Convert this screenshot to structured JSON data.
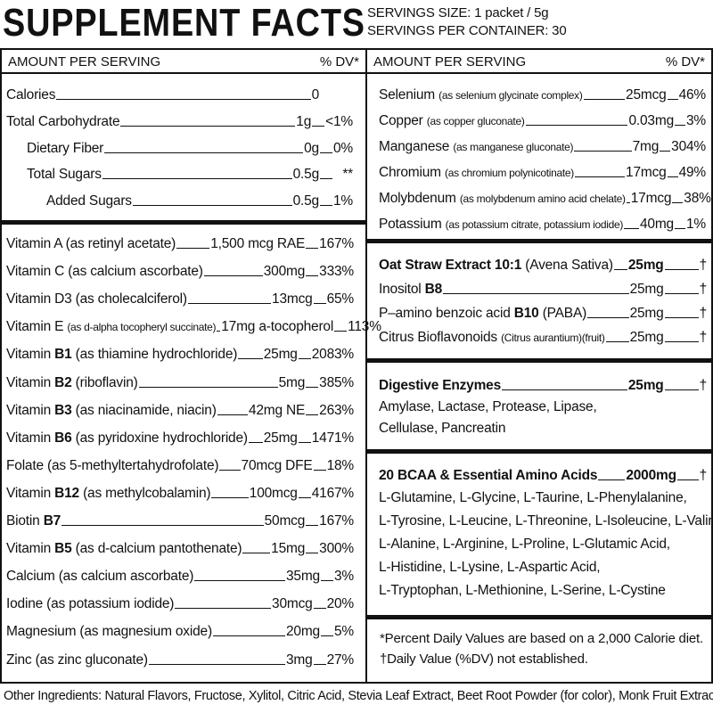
{
  "header": {
    "title": "SUPPLEMENT FACTS",
    "serving_size": "SERVINGS SIZE: 1 packet / 5g",
    "servings_per_container": "SERVINGS PER CONTAINER: 30"
  },
  "left": {
    "col_header": {
      "amount": "AMOUNT PER SERVING",
      "dv": "% DV*"
    },
    "macros": [
      {
        "name": "Calories",
        "amount": "0",
        "dv": ""
      },
      {
        "name": "Total Carbohydrate",
        "amount": "1g",
        "dv": "<1%"
      },
      {
        "name": "Dietary Fiber",
        "amount": "0g",
        "dv": "0%"
      },
      {
        "name": "Total Sugars",
        "amount": "0.5g",
        "dv": "**"
      },
      {
        "name": "Added Sugars",
        "amount": "0.5g",
        "dv": "1%"
      }
    ],
    "vitamins": [
      {
        "pre": "Vitamin A (as retinyl acetate)",
        "bold": "",
        "post": "",
        "small": "",
        "amount": "1,500 mcg RAE",
        "dv": "167%"
      },
      {
        "pre": "Vitamin C (as calcium ascorbate)",
        "bold": "",
        "post": "",
        "small": "",
        "amount": "300mg",
        "dv": "333%"
      },
      {
        "pre": "Vitamin D3 (as cholecalciferol)",
        "bold": "",
        "post": "",
        "small": "",
        "amount": "13mcg",
        "dv": "65%"
      },
      {
        "pre": "Vitamin E ",
        "bold": "",
        "post": "",
        "small": "(as d-alpha tocopheryl succinate)",
        "amount": "17mg a-tocopherol",
        "dv": "113%"
      },
      {
        "pre": "Vitamin ",
        "bold": "B1",
        "post": " (as thiamine hydrochloride)",
        "small": "",
        "amount": "25mg",
        "dv": "2083%"
      },
      {
        "pre": "Vitamin ",
        "bold": "B2",
        "post": " (riboflavin)",
        "small": "",
        "amount": "5mg",
        "dv": "385%"
      },
      {
        "pre": "Vitamin ",
        "bold": "B3",
        "post": " (as niacinamide, niacin)",
        "small": "",
        "amount": "42mg NE",
        "dv": "263%"
      },
      {
        "pre": "Vitamin ",
        "bold": "B6",
        "post": " (as pyridoxine hydrochloride)",
        "small": "",
        "amount": "25mg",
        "dv": "1471%"
      },
      {
        "pre": "Folate (as 5-methyltertahydrofolate)",
        "bold": "",
        "post": "",
        "small": "",
        "amount": "70mcg DFE",
        "dv": "18%"
      },
      {
        "pre": "Vitamin ",
        "bold": "B12",
        "post": " (as methylcobalamin)",
        "small": "",
        "amount": "100mcg",
        "dv": "4167%"
      },
      {
        "pre": "Biotin ",
        "bold": "B7",
        "post": "",
        "small": "",
        "amount": "50mcg",
        "dv": "167%"
      },
      {
        "pre": "Vitamin ",
        "bold": "B5",
        "post": " (as d-calcium pantothenate)",
        "small": "",
        "amount": "15mg",
        "dv": "300%"
      },
      {
        "pre": "Calcium (as calcium ascorbate)",
        "bold": "",
        "post": "",
        "small": "",
        "amount": "35mg",
        "dv": "3%"
      },
      {
        "pre": "Iodine (as potassium iodide)",
        "bold": "",
        "post": "",
        "small": "",
        "amount": "30mcg",
        "dv": "20%"
      },
      {
        "pre": "Magnesium (as magnesium oxide)",
        "bold": "",
        "post": "",
        "small": "",
        "amount": "20mg",
        "dv": "5%"
      },
      {
        "pre": "Zinc (as zinc gluconate)",
        "bold": "",
        "post": "",
        "small": "",
        "amount": "3mg",
        "dv": "27%"
      }
    ]
  },
  "right": {
    "col_header": {
      "amount": "AMOUNT PER SERVING",
      "dv": "% DV*"
    },
    "minerals": [
      {
        "name": "Selenium ",
        "small": "(as selenium glycinate complex)",
        "amount": "25mcg",
        "dv": "46%"
      },
      {
        "name": "Copper ",
        "small": "(as copper gluconate)",
        "amount": "0.03mg",
        "dv": "3%"
      },
      {
        "name": "Manganese ",
        "small": "(as manganese gluconate)",
        "amount": "7mg",
        "dv": "304%"
      },
      {
        "name": "Chromium ",
        "small": "(as chromium polynicotinate)",
        "amount": "17mcg",
        "dv": "49%"
      },
      {
        "name": "Molybdenum ",
        "small": "(as molybdenum amino acid chelate)",
        "amount": "17mcg",
        "dv": "38%"
      },
      {
        "name": "Potassium ",
        "small": "(as potassium citrate, potassium iodide)",
        "amount": "40mg",
        "dv": "1%"
      }
    ],
    "oat": [
      {
        "bold": "Oat Straw Extract 10:1",
        "pre": "",
        "post": " (Avena Sativa)",
        "small": "",
        "amount": "25mg",
        "amount_bold": true,
        "dv": "†"
      },
      {
        "bold": "",
        "pre": "Inositol ",
        "boldmid": "B8",
        "post": "",
        "small": "",
        "amount": "25mg",
        "amount_bold": false,
        "dv": "†"
      },
      {
        "bold": "",
        "pre": "P–amino benzoic acid ",
        "boldmid": "B10",
        "post": " (PABA)",
        "small": "",
        "amount": "25mg",
        "amount_bold": false,
        "dv": "†"
      },
      {
        "bold": "",
        "pre": "Citrus Bioflavonoids ",
        "boldmid": "",
        "post": "",
        "small": "(Citrus aurantium)(fruit)",
        "amount": "25mg",
        "amount_bold": false,
        "dv": "†"
      }
    ],
    "enzymes": {
      "title": "Digestive Enzymes",
      "amount": "25mg",
      "dv": "†",
      "lines": [
        "Amylase, Lactase, Protease, Lipase,",
        "Cellulase, Pancreatin"
      ]
    },
    "bcaa": {
      "title": "20 BCAA & Essential Amino Acids",
      "amount": "2000mg",
      "dv": "†",
      "lines": [
        "L-Glutamine, L-Glycine, L-Taurine, L-Phenylalanine,",
        "L-Tyrosine, L-Leucine, L-Threonine, L-Isoleucine,  L-Valine,",
        "L-Alanine, L-Arginine, L-Proline, L-Glutamic Acid,",
        "L-Histidine, L-Lysine, L-Aspartic Acid,",
        "L-Tryptophan, L-Methionine, L-Serine, L-Cystine"
      ]
    },
    "footnotes": [
      "*Percent Daily Values are based on a 2,000 Calorie diet.",
      "†Daily Value (%DV) not established."
    ]
  },
  "other_ingredients": "Other Ingredients: Natural Flavors, Fructose, Xylitol, Citric Acid, Stevia Leaf Extract, Beet Root Powder (for color), Monk Fruit Extract"
}
